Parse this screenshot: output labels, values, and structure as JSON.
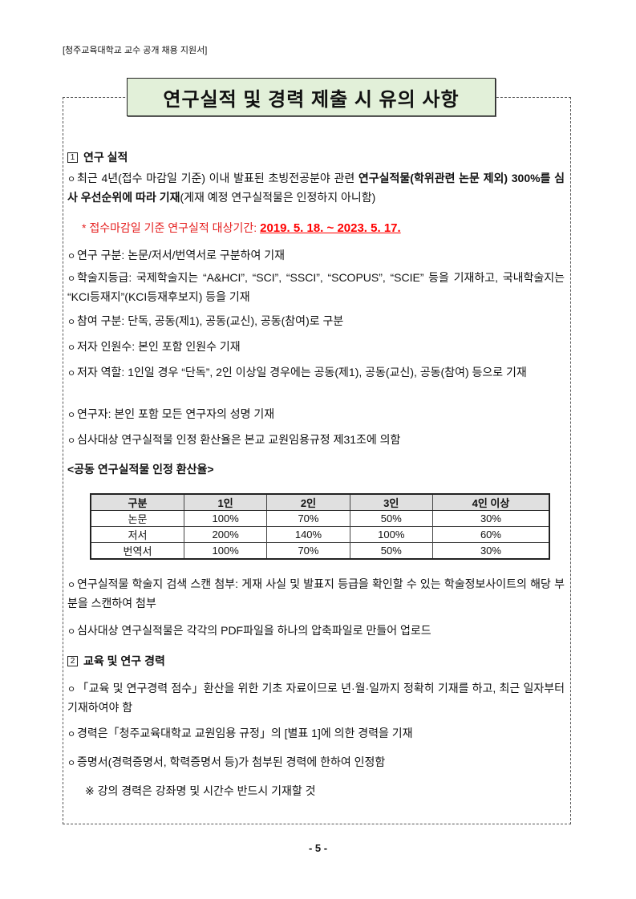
{
  "header": "[청주교육대학교 교수 공개 채용 지원서]",
  "title": "연구실적 및 경력 제출 시 유의 사항",
  "section1": {
    "number": "1",
    "heading": "연구 실적",
    "item1": {
      "seg1": "최근 4년(접수 마감일 기준) 이내 발표된 초빙전공분야 관련 ",
      "seg2_bold": "연구실적물(학위관련 논문 제외) 300%를 심사 우선순위에 따라 기재",
      "seg3": "(게재 예정 연구실적물은 인정하지 아니함)"
    },
    "period_label": "* 접수마감일 기준 연구실적 대상기간:",
    "period_value": "2019. 5. 18. ~ 2023. 5. 17.",
    "items": [
      "연구 구분: 논문/저서/번역서로 구분하여 기재",
      "학술지등급: 국제학술지는 “A&HCI”, “SCI”, “SSCI”, “SCOPUS”, “SCIE” 등을 기재하고, 국내학술지는 “KCI등재지”(KCI등재후보지) 등을 기재",
      "참여 구분: 단독, 공동(제1), 공동(교신), 공동(참여)로 구분",
      "저자 인원수: 본인 포함 인원수 기재",
      "저자 역할: 1인일 경우 “단독”, 2인 이상일 경우에는 공동(제1), 공동(교신), 공동(참여) 등으로 기재",
      "연구자: 본인 포함 모든 연구자의 성명 기재",
      "심사대상 연구실적물 인정 환산율은 본교 교원임용규정 제31조에 의함"
    ],
    "table_caption": "<공동 연구실적물 인정 환산율>",
    "table": {
      "headers": [
        "구분",
        "1인",
        "2인",
        "3인",
        "4인 이상"
      ],
      "rows": [
        [
          "논문",
          "100%",
          "70%",
          "50%",
          "30%"
        ],
        [
          "저서",
          "200%",
          "140%",
          "100%",
          "60%"
        ],
        [
          "번역서",
          "100%",
          "70%",
          "50%",
          "30%"
        ]
      ]
    },
    "items_after": [
      "연구실적물 학술지 검색 스캔 첨부: 게재 사실 및 발표지 등급을 확인할 수 있는 학술정보사이트의 해당 부분을 스캔하여 첨부",
      "심사대상 연구실적물은 각각의 PDF파일을 하나의 압축파일로 만들어 업로드"
    ]
  },
  "section2": {
    "number": "2",
    "heading": "교육 및 연구 경력",
    "items": [
      "「교육 및 연구경력 점수」환산을 위한 기초 자료이므로 년·월·일까지 정확히 기재를 하고, 최근 일자부터 기재하여야 함",
      "경력은「청주교육대학교 교원임용 규정」의 [별표 1]에 의한 경력을 기재",
      "증명서(경력증명서, 학력증명서 등)가 첨부된 경력에 한하여 인정함"
    ],
    "note": "※ 강의 경력은 강좌명 및 시간수 반드시 기재할 것"
  },
  "bullet": "ㅇ",
  "page_number": "- 5 -",
  "colors": {
    "title_bg": "#e2f0d9",
    "period_red": "#ff0000",
    "table_header_bg": "#e0e0e0"
  }
}
